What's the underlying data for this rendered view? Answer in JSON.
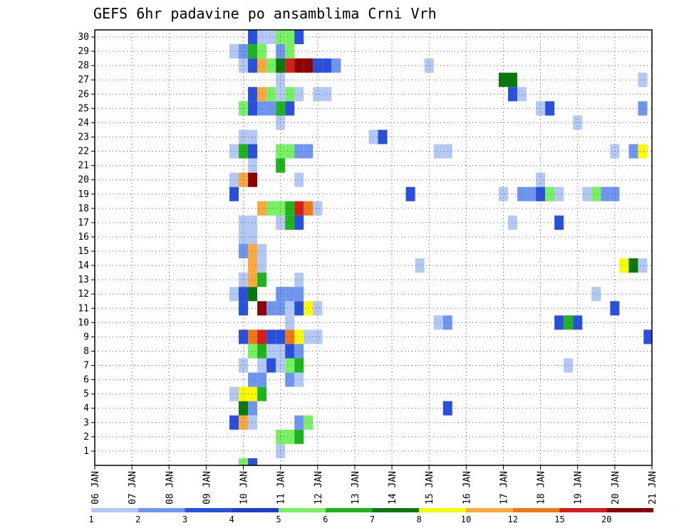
{
  "chart_data": {
    "type": "heatmap",
    "title": "GEFS 6hr padavine po ansamblima Crni Vrh",
    "xlabel": "",
    "ylabel": "",
    "x_ticks": [
      "06 JAN",
      "07 JAN",
      "08 JAN",
      "09 JAN",
      "10 JAN",
      "11 JAN",
      "12 JAN",
      "13 JAN",
      "14 JAN",
      "15 JAN",
      "16 JAN",
      "17 JAN",
      "18 JAN",
      "19 JAN",
      "20 JAN",
      "21 JAN"
    ],
    "x_range_days": [
      0,
      15
    ],
    "y_ticks": [
      "1",
      "2",
      "3",
      "4",
      "5",
      "6",
      "7",
      "8",
      "9",
      "10",
      "11",
      "12",
      "13",
      "14",
      "15",
      "16",
      "17",
      "18",
      "19",
      "20",
      "21",
      "22",
      "23",
      "24",
      "25",
      "26",
      "27",
      "28",
      "29",
      "30"
    ],
    "y_range": [
      0,
      30
    ],
    "grid": true,
    "color_scale": {
      "labels": [
        "1",
        "2",
        "3",
        "4",
        "5",
        "6",
        "7",
        "8",
        "10",
        "12",
        "15",
        "20"
      ],
      "colors": [
        "#b4c8f5",
        "#6e96f0",
        "#2850dc",
        "#1e3cc8",
        "#78f064",
        "#1eb41e",
        "#0a780a",
        "#fafa00",
        "#faaa3c",
        "#f07814",
        "#d21e1e",
        "#8c0000"
      ]
    },
    "member_precip_mm": [
      {
        "member": 0,
        "values": [
          [
            4.0,
            5
          ],
          [
            4.25,
            3
          ]
        ]
      },
      {
        "member": 1,
        "values": [
          [
            5.0,
            1
          ]
        ]
      },
      {
        "member": 2,
        "values": [
          [
            5.0,
            5
          ],
          [
            5.25,
            5
          ],
          [
            5.5,
            6
          ]
        ]
      },
      {
        "member": 3,
        "values": [
          [
            3.75,
            3
          ],
          [
            4.0,
            10
          ],
          [
            4.25,
            1
          ],
          [
            5.5,
            2
          ],
          [
            5.75,
            5
          ]
        ]
      },
      {
        "member": 4,
        "values": [
          [
            4.0,
            7
          ],
          [
            4.25,
            2
          ],
          [
            9.5,
            3
          ]
        ]
      },
      {
        "member": 5,
        "values": [
          [
            3.75,
            1
          ],
          [
            4.0,
            8
          ],
          [
            4.25,
            8
          ],
          [
            4.5,
            6
          ]
        ]
      },
      {
        "member": 6,
        "values": [
          [
            4.25,
            2
          ],
          [
            4.5,
            2
          ],
          [
            5.25,
            2
          ],
          [
            5.5,
            1
          ]
        ]
      },
      {
        "member": 7,
        "values": [
          [
            4.0,
            1
          ],
          [
            4.5,
            1
          ],
          [
            4.75,
            3
          ],
          [
            5.0,
            1
          ],
          [
            5.25,
            5
          ],
          [
            5.5,
            6
          ],
          [
            12.75,
            1
          ]
        ]
      },
      {
        "member": 8,
        "values": [
          [
            4.25,
            5
          ],
          [
            4.5,
            6
          ],
          [
            4.75,
            1
          ],
          [
            5.0,
            1
          ],
          [
            5.25,
            3
          ],
          [
            5.5,
            2
          ]
        ]
      },
      {
        "member": 9,
        "values": [
          [
            4.0,
            3
          ],
          [
            4.25,
            12
          ],
          [
            4.5,
            15
          ],
          [
            4.75,
            3
          ],
          [
            5.0,
            3
          ],
          [
            5.25,
            12
          ],
          [
            5.5,
            8
          ],
          [
            5.75,
            1
          ],
          [
            6.0,
            1
          ],
          [
            14.9,
            3
          ]
        ]
      },
      {
        "member": 10,
        "values": [
          [
            5.25,
            1
          ],
          [
            9.25,
            1
          ],
          [
            9.5,
            2
          ],
          [
            12.5,
            3
          ],
          [
            12.75,
            6
          ],
          [
            13.0,
            3
          ]
        ]
      },
      {
        "member": 11,
        "values": [
          [
            4.0,
            3
          ],
          [
            4.5,
            20
          ],
          [
            4.75,
            2
          ],
          [
            5.0,
            2
          ],
          [
            5.25,
            1
          ],
          [
            5.5,
            3
          ],
          [
            5.75,
            8
          ],
          [
            6.0,
            1
          ],
          [
            14.0,
            3
          ]
        ]
      },
      {
        "member": 12,
        "values": [
          [
            3.75,
            1
          ],
          [
            4.0,
            3
          ],
          [
            4.25,
            7
          ],
          [
            5.0,
            2
          ],
          [
            5.25,
            2
          ],
          [
            5.5,
            2
          ],
          [
            13.5,
            1
          ]
        ]
      },
      {
        "member": 13,
        "values": [
          [
            4.0,
            1
          ],
          [
            4.25,
            10
          ],
          [
            4.5,
            6
          ],
          [
            5.5,
            1
          ]
        ]
      },
      {
        "member": 14,
        "values": [
          [
            4.25,
            10
          ],
          [
            4.5,
            1
          ],
          [
            8.75,
            1
          ],
          [
            14.25,
            8
          ],
          [
            14.5,
            7
          ],
          [
            14.75,
            1
          ]
        ]
      },
      {
        "member": 15,
        "values": [
          [
            4.0,
            2
          ],
          [
            4.25,
            10
          ],
          [
            4.5,
            1
          ]
        ]
      },
      {
        "member": 16,
        "values": [
          [
            4.0,
            1
          ],
          [
            4.25,
            1
          ]
        ]
      },
      {
        "member": 17,
        "values": [
          [
            4.0,
            1
          ],
          [
            4.25,
            1
          ],
          [
            5.0,
            1
          ],
          [
            5.25,
            6
          ],
          [
            5.5,
            3
          ],
          [
            11.25,
            1
          ],
          [
            12.5,
            3
          ]
        ]
      },
      {
        "member": 18,
        "values": [
          [
            4.5,
            10
          ],
          [
            4.75,
            5
          ],
          [
            5.0,
            5
          ],
          [
            5.25,
            6
          ],
          [
            5.5,
            15
          ],
          [
            5.75,
            12
          ],
          [
            6.0,
            1
          ]
        ]
      },
      {
        "member": 19,
        "values": [
          [
            3.75,
            3
          ],
          [
            8.5,
            3
          ],
          [
            11.0,
            1
          ],
          [
            11.5,
            2
          ],
          [
            11.75,
            2
          ],
          [
            12.0,
            3
          ],
          [
            12.25,
            5
          ],
          [
            12.5,
            1
          ],
          [
            13.25,
            1
          ],
          [
            13.5,
            5
          ],
          [
            13.75,
            2
          ],
          [
            14.0,
            2
          ]
        ]
      },
      {
        "member": 20,
        "values": [
          [
            3.75,
            1
          ],
          [
            4.0,
            10
          ],
          [
            4.25,
            20
          ],
          [
            5.5,
            1
          ],
          [
            12.0,
            1
          ]
        ]
      },
      {
        "member": 21,
        "values": [
          [
            4.25,
            1
          ],
          [
            5.0,
            6
          ]
        ]
      },
      {
        "member": 22,
        "values": [
          [
            3.75,
            1
          ],
          [
            4.0,
            6
          ],
          [
            4.25,
            3
          ],
          [
            5.0,
            5
          ],
          [
            5.25,
            5
          ],
          [
            5.5,
            2
          ],
          [
            5.75,
            2
          ],
          [
            9.25,
            1
          ],
          [
            9.5,
            1
          ],
          [
            14.0,
            1
          ],
          [
            14.5,
            2
          ],
          [
            14.75,
            8
          ]
        ]
      },
      {
        "member": 23,
        "values": [
          [
            4.0,
            1
          ],
          [
            4.25,
            1
          ],
          [
            7.5,
            1
          ],
          [
            7.75,
            3
          ]
        ]
      },
      {
        "member": 24,
        "values": [
          [
            5.0,
            1
          ],
          [
            13.0,
            1
          ]
        ]
      },
      {
        "member": 25,
        "values": [
          [
            4.0,
            5
          ],
          [
            4.25,
            3
          ],
          [
            4.5,
            2
          ],
          [
            4.75,
            2
          ],
          [
            5.0,
            6
          ],
          [
            5.25,
            3
          ],
          [
            12.0,
            1
          ],
          [
            12.25,
            3
          ],
          [
            14.75,
            2
          ]
        ]
      },
      {
        "member": 26,
        "values": [
          [
            4.25,
            3
          ],
          [
            4.5,
            10
          ],
          [
            4.75,
            5
          ],
          [
            5.0,
            1
          ],
          [
            5.25,
            5
          ],
          [
            5.5,
            1
          ],
          [
            6.0,
            1
          ],
          [
            6.25,
            1
          ],
          [
            11.25,
            3
          ],
          [
            11.5,
            1
          ]
        ]
      },
      {
        "member": 27,
        "values": [
          [
            5.0,
            1
          ],
          [
            11.0,
            7
          ],
          [
            11.25,
            7
          ],
          [
            14.75,
            1
          ]
        ]
      },
      {
        "member": 28,
        "values": [
          [
            4.0,
            1
          ],
          [
            4.25,
            3
          ],
          [
            4.5,
            10
          ],
          [
            4.75,
            5
          ],
          [
            5.0,
            7
          ],
          [
            5.25,
            15
          ],
          [
            5.5,
            20
          ],
          [
            5.75,
            20
          ],
          [
            6.0,
            3
          ],
          [
            6.25,
            3
          ],
          [
            6.5,
            2
          ],
          [
            9.0,
            1
          ]
        ]
      },
      {
        "member": 29,
        "values": [
          [
            3.75,
            1
          ],
          [
            4.0,
            2
          ],
          [
            4.25,
            6
          ],
          [
            4.5,
            5
          ],
          [
            5.0,
            2
          ],
          [
            5.25,
            5
          ]
        ]
      },
      {
        "member": 30,
        "values": [
          [
            4.25,
            3
          ],
          [
            4.5,
            1
          ],
          [
            4.75,
            1
          ],
          [
            5.0,
            5
          ],
          [
            5.25,
            5
          ],
          [
            5.5,
            3
          ]
        ]
      }
    ]
  }
}
